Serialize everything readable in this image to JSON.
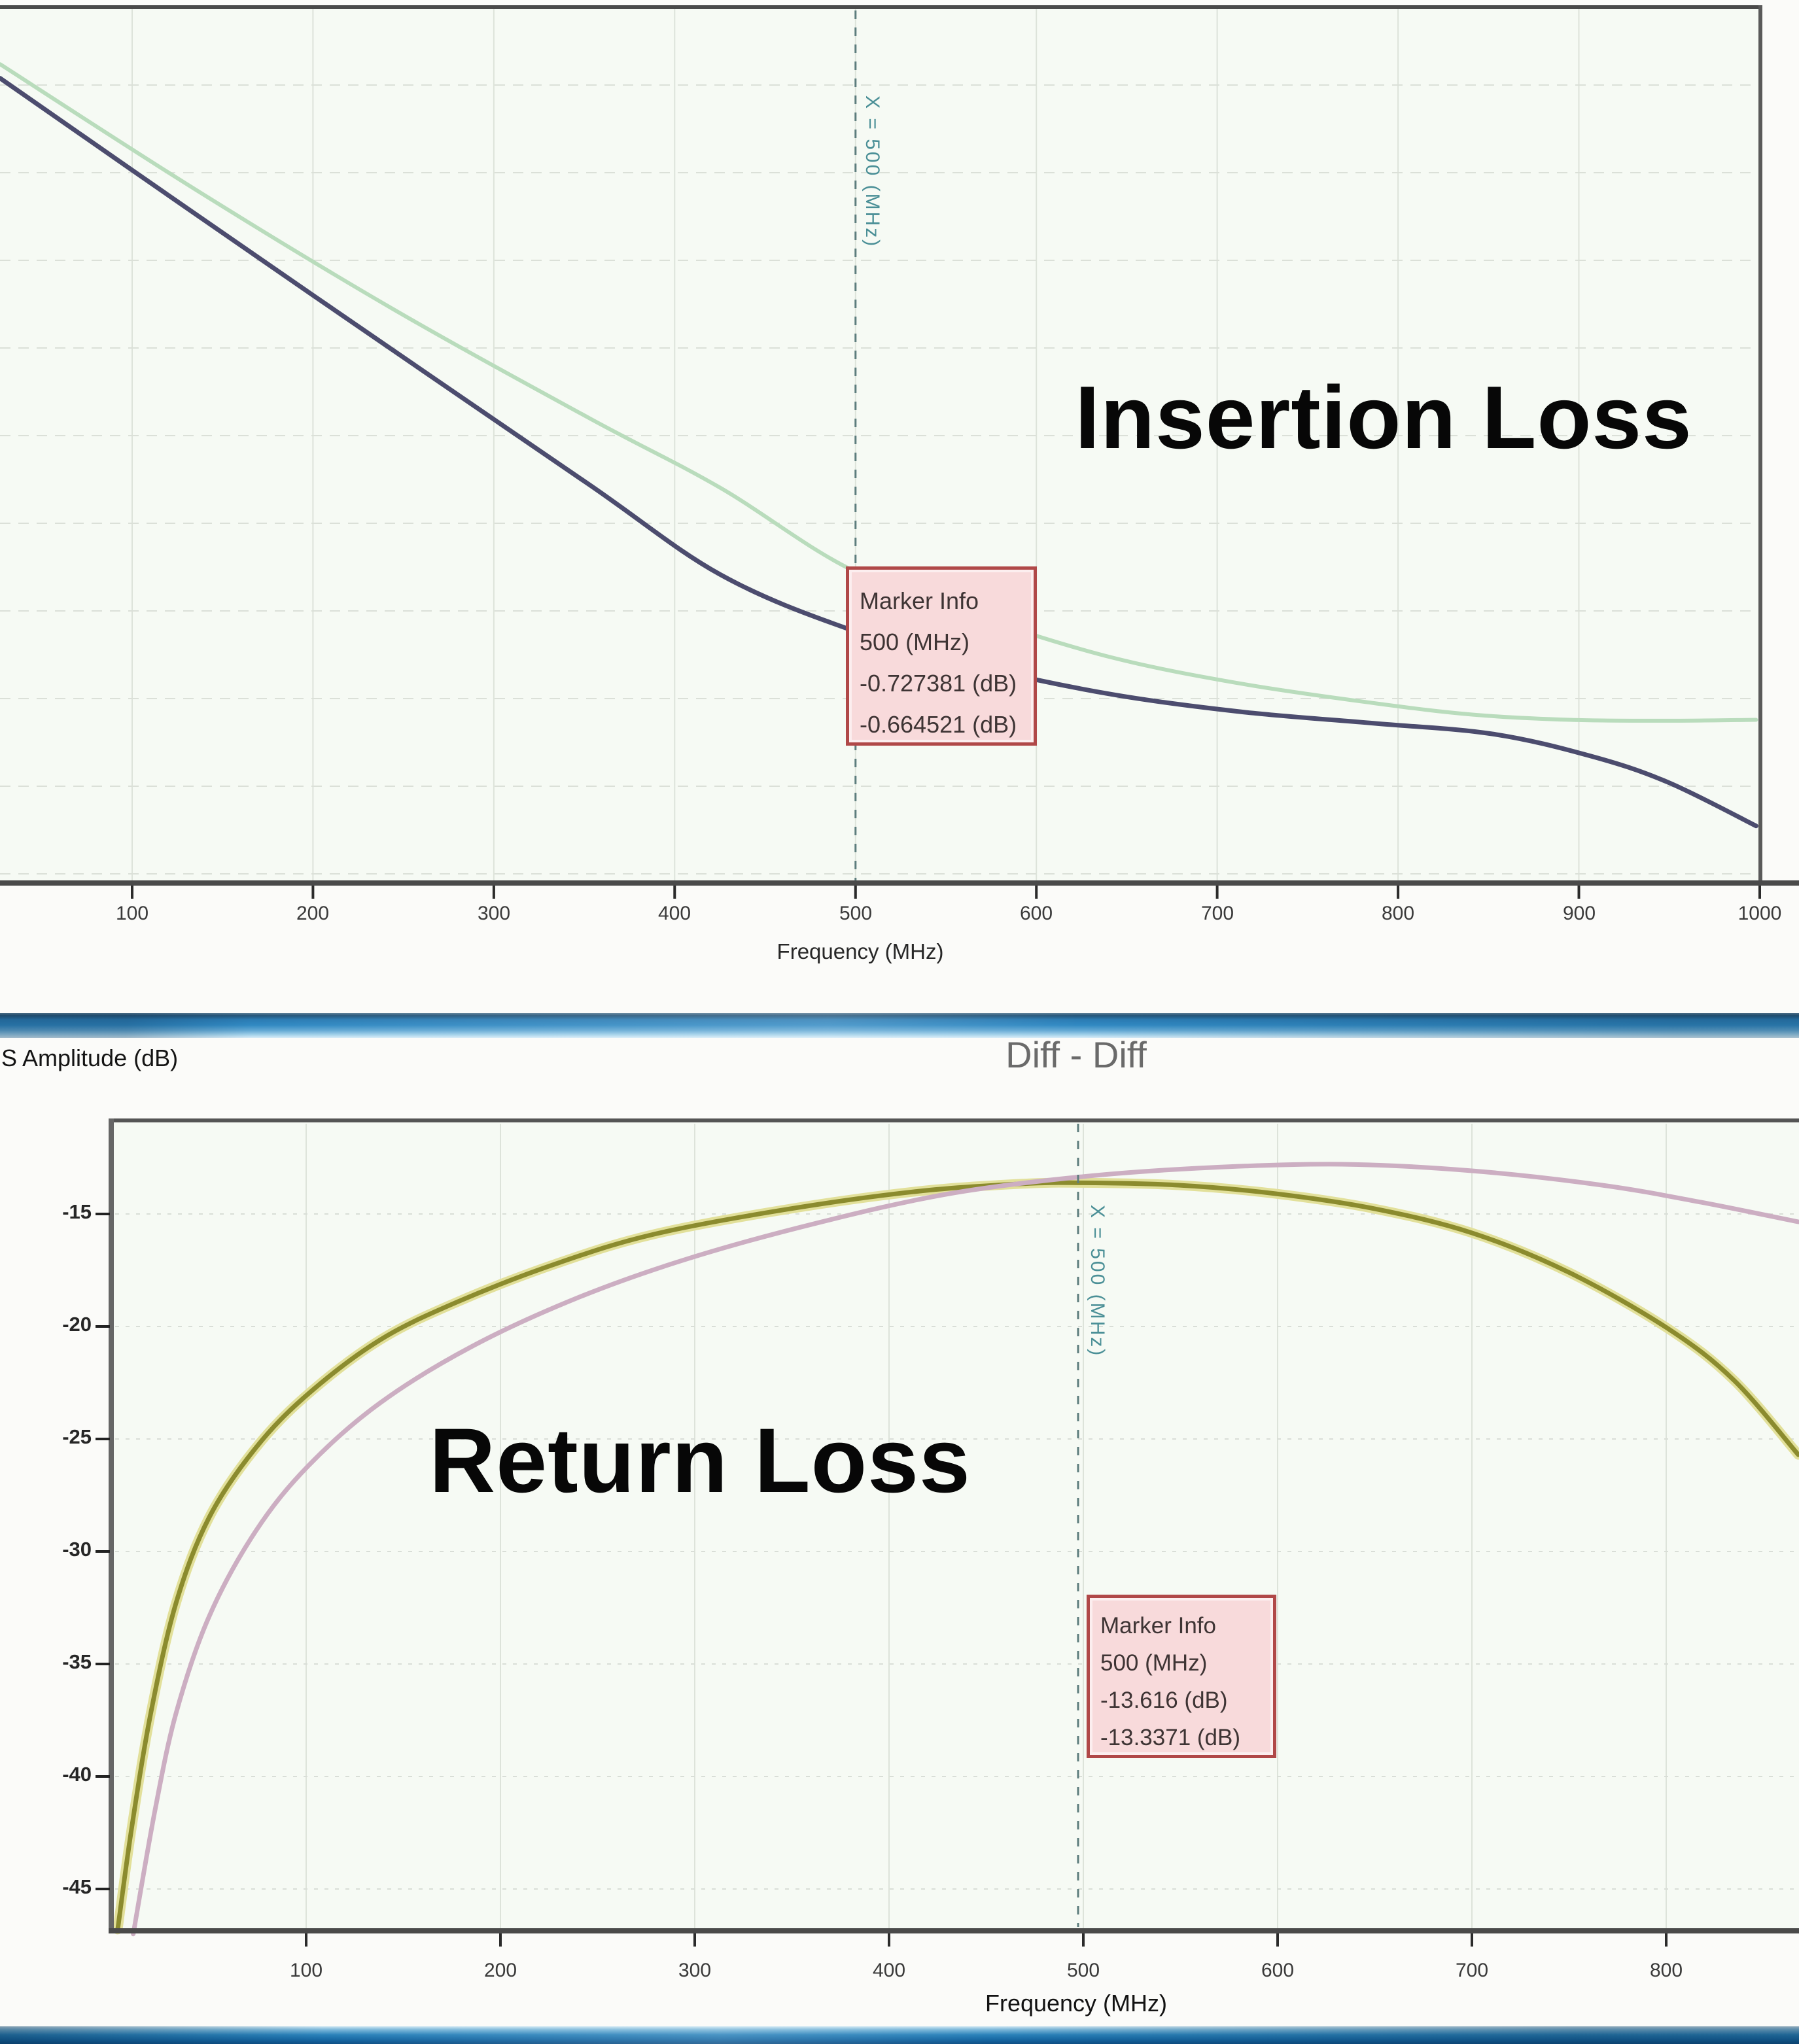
{
  "chart_data": [
    {
      "type": "line",
      "title": "Insertion Loss",
      "xlabel": "Frequency (MHz)",
      "x_ticks": [
        100,
        200,
        300,
        400,
        500,
        600,
        700,
        800,
        900,
        1000
      ],
      "xlim": [
        27,
        1000
      ],
      "y_axis_hidden": true,
      "ylim_est": [
        -1.0,
        -0.08
      ],
      "grid": true,
      "legend": null,
      "marker": {
        "x": 500,
        "x_unit": "MHz",
        "label": "X = 500 (MHz)",
        "info_box": [
          "Marker Info",
          "500 (MHz)",
          "-0.727381 (dB)",
          "-0.664521 (dB)"
        ]
      },
      "series": [
        {
          "name": "trace-1",
          "color": "#b9dcbc",
          "width": 6,
          "points": [
            [
              27,
              -0.08
            ],
            [
              135,
              -0.223
            ],
            [
              244,
              -0.359
            ],
            [
              353,
              -0.484
            ],
            [
              425,
              -0.563
            ],
            [
              497,
              -0.656
            ],
            [
              570,
              -0.712
            ],
            [
              642,
              -0.757
            ],
            [
              714,
              -0.787
            ],
            [
              787,
              -0.809
            ],
            [
              841,
              -0.822
            ],
            [
              895,
              -0.828
            ],
            [
              949,
              -0.829
            ],
            [
              998,
              -0.828
            ]
          ]
        },
        {
          "name": "trace-2",
          "color": "#4c4c6e",
          "width": 7,
          "points": [
            [
              27,
              -0.096
            ],
            [
              135,
              -0.251
            ],
            [
              244,
              -0.406
            ],
            [
              353,
              -0.56
            ],
            [
              425,
              -0.662
            ],
            [
              497,
              -0.725
            ],
            [
              570,
              -0.768
            ],
            [
              642,
              -0.799
            ],
            [
              714,
              -0.819
            ],
            [
              787,
              -0.832
            ],
            [
              852,
              -0.844
            ],
            [
              906,
              -0.869
            ],
            [
              949,
              -0.899
            ],
            [
              998,
              -0.949
            ]
          ]
        }
      ]
    },
    {
      "type": "line",
      "title": "Return Loss",
      "subtitle": "Diff - Diff",
      "ylabel": "S Amplitude (dB)",
      "xlabel": "Frequency (MHz)",
      "x_ticks": [
        100,
        200,
        300,
        400,
        500,
        600,
        700,
        800
      ],
      "y_ticks": [
        -15,
        -20,
        -25,
        -30,
        -35,
        -40,
        -45
      ],
      "xlim": [
        0,
        868
      ],
      "ylim": [
        -47.5,
        -10.3
      ],
      "grid": true,
      "legend": null,
      "marker": {
        "x": 500,
        "x_unit": "MHz",
        "label": "X = 500 (MHz)",
        "info_box": [
          "Marker Info",
          "500 (MHz)",
          "-13.616 (dB)",
          "-13.3371 (dB)"
        ]
      },
      "series": [
        {
          "name": "trace-1",
          "color": "#8b8b2e",
          "halo": "#e2e09a",
          "width": 7,
          "points": [
            [
              3,
              -46.8
            ],
            [
              10,
              -42.4
            ],
            [
              20,
              -37.2
            ],
            [
              33,
              -32.3
            ],
            [
              50,
              -28.5
            ],
            [
              74,
              -25.4
            ],
            [
              101,
              -23.0
            ],
            [
              138,
              -20.6
            ],
            [
              178,
              -18.9
            ],
            [
              229,
              -17.2
            ],
            [
              279,
              -15.9
            ],
            [
              347,
              -14.8
            ],
            [
              414,
              -14.0
            ],
            [
              468,
              -13.66
            ],
            [
              500,
              -13.616
            ],
            [
              549,
              -13.72
            ],
            [
              599,
              -14.1
            ],
            [
              650,
              -14.77
            ],
            [
              700,
              -15.84
            ],
            [
              750,
              -17.6
            ],
            [
              801,
              -20.1
            ],
            [
              835,
              -22.4
            ],
            [
              868,
              -25.7
            ]
          ]
        },
        {
          "name": "trace-2",
          "color": "#ccaec2",
          "width": 7,
          "points": [
            [
              11,
              -47.0
            ],
            [
              22,
              -41.6
            ],
            [
              33,
              -37.2
            ],
            [
              50,
              -32.9
            ],
            [
              74,
              -29.1
            ],
            [
              101,
              -26.2
            ],
            [
              138,
              -23.4
            ],
            [
              185,
              -20.9
            ],
            [
              239,
              -18.75
            ],
            [
              296,
              -17.0
            ],
            [
              363,
              -15.4
            ],
            [
              431,
              -14.1
            ],
            [
              500,
              -13.3371
            ],
            [
              565,
              -12.94
            ],
            [
              633,
              -12.79
            ],
            [
              700,
              -13.08
            ],
            [
              767,
              -13.72
            ],
            [
              818,
              -14.48
            ],
            [
              868,
              -15.35
            ]
          ]
        }
      ]
    }
  ],
  "decor": {
    "plot_background": "#f6faf4",
    "frame_color": "#4a4a4a",
    "grid_color": "#dde3da",
    "marker_line_color": "#5d7d7d",
    "marker_box_bg": "#f8dadb",
    "marker_box_border": "#b04848",
    "separator_blue_dark": "#24557a",
    "separator_blue": "#3189c2",
    "separator_blue_light": "#9fcfe9"
  }
}
